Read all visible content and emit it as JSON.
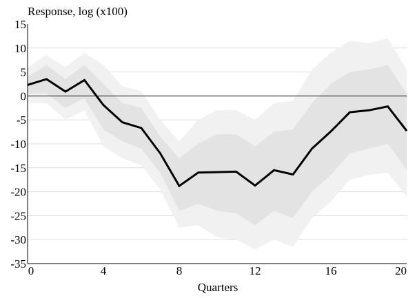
{
  "chart_data": {
    "type": "line",
    "title": "",
    "ylabel": "Response, log (x100)",
    "xlabel": "Quarters",
    "xlim": [
      0,
      20
    ],
    "ylim": [
      -35,
      15
    ],
    "x_ticks": [
      0,
      4,
      8,
      12,
      16,
      20
    ],
    "y_ticks": [
      15,
      10,
      5,
      0,
      -5,
      -10,
      -15,
      -20,
      -25,
      -30,
      -35
    ],
    "grid": "horizontal",
    "reference_line": 0,
    "colors": {
      "line": "#000000",
      "band_outer": "#f1f1f1",
      "band_inner": "#e3e3e3",
      "grid": "#dddddd",
      "zero_line": "#555555"
    },
    "x": [
      0,
      1,
      2,
      3,
      4,
      5,
      6,
      7,
      8,
      9,
      10,
      11,
      12,
      13,
      14,
      15,
      16,
      17,
      18,
      19,
      20
    ],
    "series": [
      {
        "values": [
          2.3,
          3.5,
          0.9,
          3.3,
          -1.9,
          -5.5,
          -6.7,
          -12.0,
          -18.8,
          -16.0,
          -15.9,
          -15.8,
          -18.7,
          -15.5,
          -16.4,
          -11.0,
          -7.4,
          -3.4,
          -3.0,
          -2.2,
          -7.3
        ]
      }
    ],
    "bands": [
      {
        "level": "outer",
        "upper": [
          6.0,
          8.5,
          6.0,
          9.0,
          6.5,
          2.0,
          1.0,
          -5.0,
          -9.5,
          -5.0,
          -3.0,
          -3.0,
          -5.0,
          -1.5,
          -1.0,
          5.5,
          9.0,
          11.5,
          11.0,
          12.0,
          5.5
        ],
        "lower": [
          -1.5,
          -1.5,
          -5.0,
          -3.0,
          -10.5,
          -13.0,
          -14.5,
          -19.5,
          -27.5,
          -27.0,
          -29.5,
          -30.0,
          -32.0,
          -30.0,
          -31.5,
          -25.5,
          -22.0,
          -17.5,
          -16.5,
          -16.0,
          -21.0
        ]
      },
      {
        "level": "inner",
        "upper": [
          4.0,
          6.5,
          3.5,
          6.5,
          2.5,
          -1.5,
          -2.5,
          -8.5,
          -13.0,
          -10.0,
          -8.0,
          -8.0,
          -10.5,
          -7.5,
          -7.0,
          -1.5,
          2.5,
          5.0,
          5.5,
          6.5,
          0.5
        ],
        "lower": [
          0.5,
          0.5,
          -2.5,
          -0.5,
          -7.0,
          -9.5,
          -11.0,
          -16.0,
          -24.0,
          -22.5,
          -24.0,
          -24.5,
          -27.0,
          -24.0,
          -25.5,
          -20.0,
          -16.5,
          -12.0,
          -11.0,
          -10.0,
          -15.5
        ]
      }
    ]
  }
}
